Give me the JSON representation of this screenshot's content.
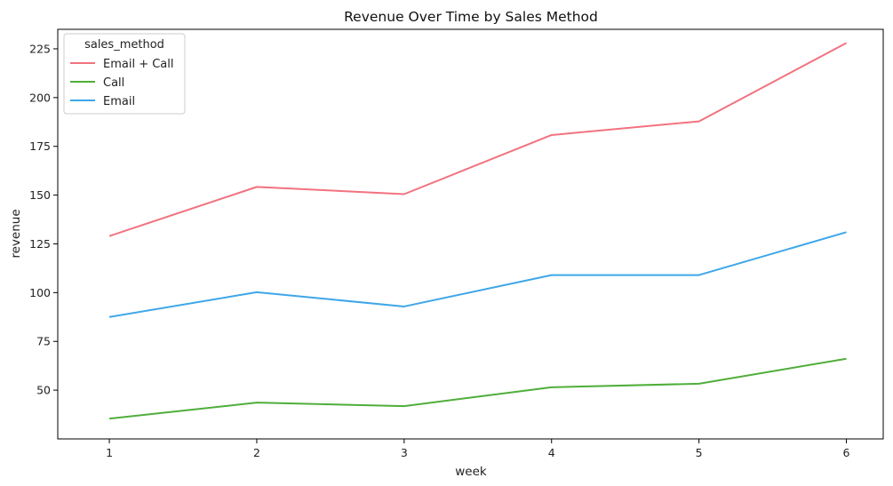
{
  "chart_data": {
    "type": "line",
    "title": "Revenue Over Time by Sales Method",
    "xlabel": "week",
    "ylabel": "revenue",
    "x": [
      1,
      2,
      3,
      4,
      5,
      6
    ],
    "xticks": [
      "1",
      "2",
      "3",
      "4",
      "5",
      "6"
    ],
    "yticks": [
      "50",
      "75",
      "100",
      "125",
      "150",
      "175",
      "200",
      "225"
    ],
    "yrange": [
      25,
      235
    ],
    "xrange": [
      0.65,
      6.25
    ],
    "grid": false,
    "legend": {
      "title": "sales_method",
      "placement": "top-left"
    },
    "series": [
      {
        "name": "Email + Call",
        "color": "#f2727f",
        "values": [
          129,
          154.2,
          150.5,
          180.8,
          187.8,
          228
        ]
      },
      {
        "name": "Call",
        "color": "#4fae3a",
        "values": [
          35.4,
          43.6,
          41.8,
          51.5,
          53.3,
          66.1
        ]
      },
      {
        "name": "Email",
        "color": "#3ea6e8",
        "values": [
          87.5,
          100.2,
          92.9,
          109,
          109,
          131
        ]
      }
    ]
  }
}
